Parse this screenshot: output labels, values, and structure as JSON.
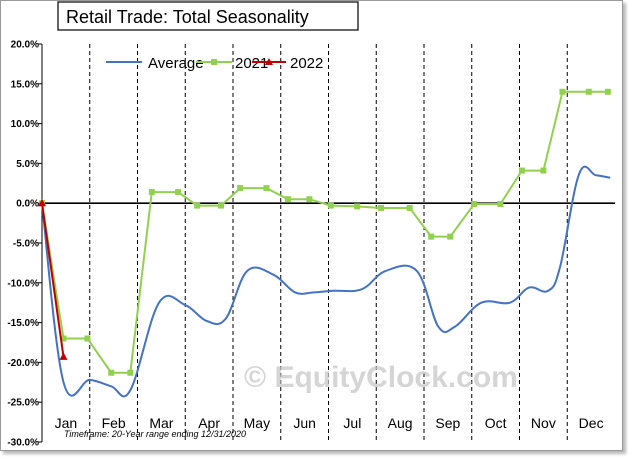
{
  "chart_data": {
    "type": "line",
    "title": "Retail Trade: Total Seasonality",
    "xlabel": "",
    "ylabel": "",
    "ylim": [
      -30,
      20
    ],
    "y_ticks": [
      "20.0%",
      "15.0%",
      "10.0%",
      "5.0%",
      "0.0%",
      "-5.0%",
      "-10.0%",
      "-15.0%",
      "-20.0%",
      "-25.0%",
      "-30.0%"
    ],
    "y_tick_values": [
      20,
      15,
      10,
      5,
      0,
      -5,
      -10,
      -15,
      -20,
      -25,
      -30
    ],
    "categories": [
      "Jan",
      "Feb",
      "Mar",
      "Apr",
      "May",
      "Jun",
      "Jul",
      "Aug",
      "Sep",
      "Oct",
      "Nov",
      "Dec"
    ],
    "grid": "vertical dashed lines at month boundaries",
    "legend_position": "top",
    "colors": {
      "average": "#4472c4",
      "y2021": "#92d050",
      "y2022": "#c00000"
    },
    "series": [
      {
        "name": "Average",
        "x": [
          0,
          0.45,
          1.0,
          1.45,
          1.85,
          2.45,
          3.0,
          3.45,
          3.85,
          4.3,
          4.85,
          5.3,
          5.7,
          6.1,
          6.7,
          7.2,
          7.85,
          8.3,
          8.65,
          9.2,
          9.8,
          10.2,
          10.6,
          10.85,
          11.25,
          11.6,
          11.9
        ],
        "values": [
          0,
          -22.5,
          -22.2,
          -23.0,
          -23.5,
          -12.5,
          -12.8,
          -14.8,
          -14.5,
          -8.5,
          -9.0,
          -11.2,
          -11.2,
          -11.0,
          -10.8,
          -8.5,
          -8.5,
          -15.5,
          -15.5,
          -12.5,
          -12.5,
          -10.6,
          -11.0,
          -8.0,
          3.7,
          3.5,
          3.2
        ]
      },
      {
        "name": "2021",
        "x": [
          0,
          0.45,
          0.95,
          1.45,
          1.85,
          2.3,
          2.85,
          3.25,
          3.75,
          4.15,
          4.7,
          5.15,
          5.6,
          6.05,
          6.6,
          7.1,
          7.7,
          8.15,
          8.55,
          9.05,
          9.6,
          10.05,
          10.5,
          10.9,
          11.45,
          11.85
        ],
        "values": [
          0,
          -17.0,
          -17.0,
          -21.3,
          -21.3,
          1.4,
          1.4,
          -0.3,
          -0.3,
          1.9,
          1.9,
          0.5,
          0.5,
          -0.3,
          -0.4,
          -0.6,
          -0.6,
          -4.2,
          -4.2,
          -0.1,
          -0.1,
          4.1,
          4.1,
          14.0,
          14.0,
          14.0
        ]
      },
      {
        "name": "2022",
        "x": [
          0,
          0.45
        ],
        "values": [
          0,
          -19.3
        ]
      }
    ],
    "footnote": "Timeframe: 20-Year range ending 12/31/2020",
    "watermark": "© EquityClock.com"
  }
}
